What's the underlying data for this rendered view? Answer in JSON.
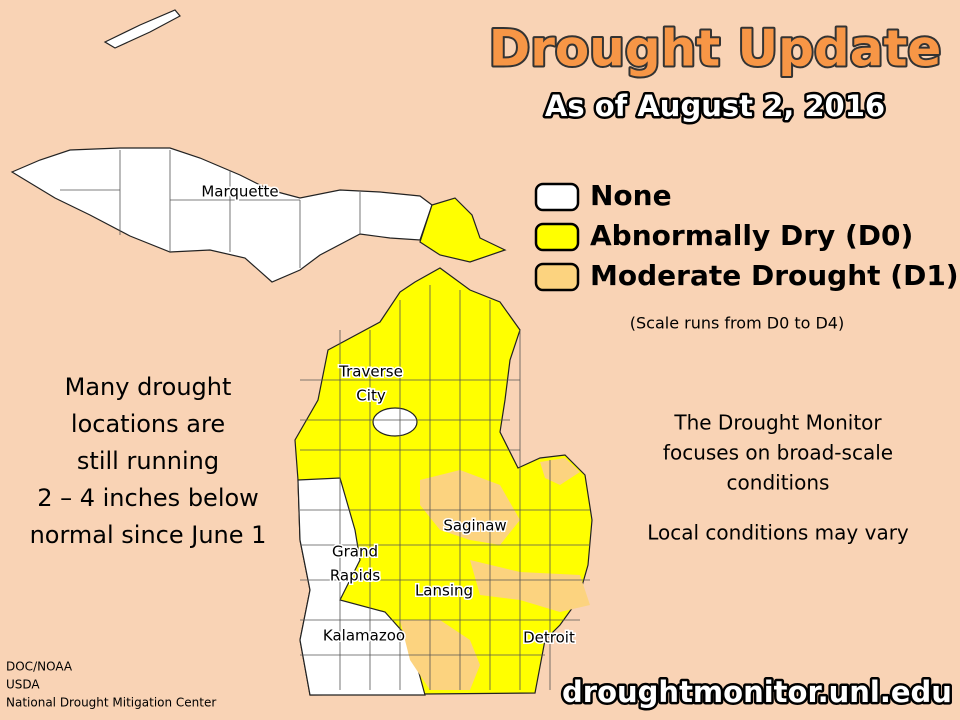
{
  "title": "Drought Update",
  "subtitle": "As of August 2, 2016",
  "legend": {
    "items": [
      {
        "label": "None",
        "color": "#ffffff"
      },
      {
        "label": "Abnormally Dry (D0)",
        "color": "#ffff00"
      },
      {
        "label": "Moderate Drought (D1)",
        "color": "#fcd37f"
      }
    ],
    "note": "(Scale runs from D0 to D4)"
  },
  "left_text": [
    "Many drought",
    "locations are",
    "still running",
    "2 – 4 inches below",
    "normal since June 1"
  ],
  "right_text": [
    "The Drought Monitor",
    "focuses on broad-scale",
    "conditions"
  ],
  "right_note": "Local conditions may vary",
  "cities": [
    {
      "lines": [
        "Marquette"
      ]
    },
    {
      "lines": [
        "Traverse",
        "City"
      ]
    },
    {
      "lines": [
        "Saginaw"
      ]
    },
    {
      "lines": [
        "Grand",
        "Rapids"
      ]
    },
    {
      "lines": [
        "Lansing"
      ]
    },
    {
      "lines": [
        "Kalamazoo"
      ]
    },
    {
      "lines": [
        "Detroit"
      ]
    }
  ],
  "credits": [
    "DOC/NOAA",
    "USDA",
    "National Drought Mitigation Center"
  ],
  "url": "droughtmonitor.unl.edu"
}
